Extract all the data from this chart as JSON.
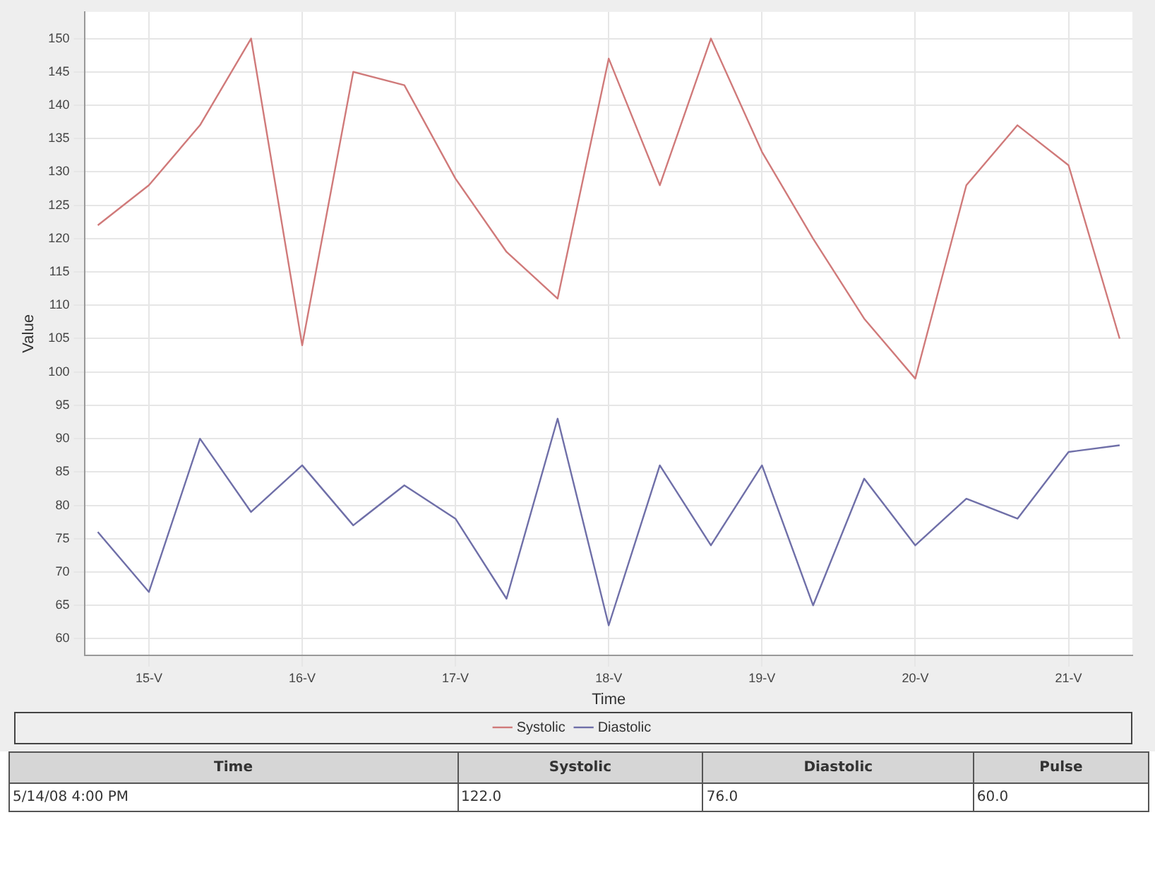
{
  "chart_data": {
    "type": "line",
    "xlabel": "Time",
    "ylabel": "Value",
    "x": [
      "--05-14T16:00",
      "--05-15T00:00",
      "--05-15T08:00",
      "--05-15T16:00",
      "--05-16T00:00",
      "--05-16T08:00",
      "--05-16T16:00",
      "--05-17T00:00",
      "--05-17T08:00",
      "--05-17T16:00",
      "--05-18T00:00",
      "--05-18T08:00",
      "--05-18T16:00",
      "--05-19T00:00",
      "--05-19T08:00",
      "--05-19T16:00",
      "--05-20T00:00",
      "--05-20T08:00",
      "--05-20T16:00",
      "--05-21T00:00",
      "--05-21T08:00"
    ],
    "series": [
      {
        "name": "Systolic",
        "color": "#d07a7a",
        "values": [
          122,
          128,
          137,
          150,
          104,
          145,
          143,
          129,
          118,
          111,
          147,
          128,
          150,
          133,
          120,
          108,
          99,
          128,
          137,
          131,
          105
        ]
      },
      {
        "name": "Diastolic",
        "color": "#6f6fa8",
        "values": [
          76,
          67,
          90,
          79,
          86,
          77,
          83,
          78,
          66,
          93,
          62,
          86,
          74,
          86,
          65,
          84,
          74,
          81,
          78,
          88,
          89
        ]
      }
    ],
    "xlim": [
      "--05-14T14:00",
      "--05-21T10:00"
    ],
    "xticks": [
      {
        "value": "--05-15",
        "label": "15-V"
      },
      {
        "value": "--05-16",
        "label": "16-V"
      },
      {
        "value": "--05-17",
        "label": "17-V"
      },
      {
        "value": "--05-18",
        "label": "18-V"
      },
      {
        "value": "--05-19",
        "label": "19-V"
      },
      {
        "value": "--05-20",
        "label": "20-V"
      },
      {
        "value": "--05-21",
        "label": "21-V"
      }
    ],
    "ylim": [
      57.5,
      154
    ],
    "yticks": [
      60,
      65,
      70,
      75,
      80,
      85,
      90,
      95,
      100,
      105,
      110,
      115,
      120,
      125,
      130,
      135,
      140,
      145,
      150
    ],
    "grid": true,
    "legend": "bottom",
    "marker": "none",
    "line_style": "solid",
    "annotations": [
      "Time",
      "Systolic",
      "Diastolic",
      "Pulse",
      "5/14/08 4:00 PM",
      "122.0",
      "76.0",
      "60.0"
    ]
  }
}
